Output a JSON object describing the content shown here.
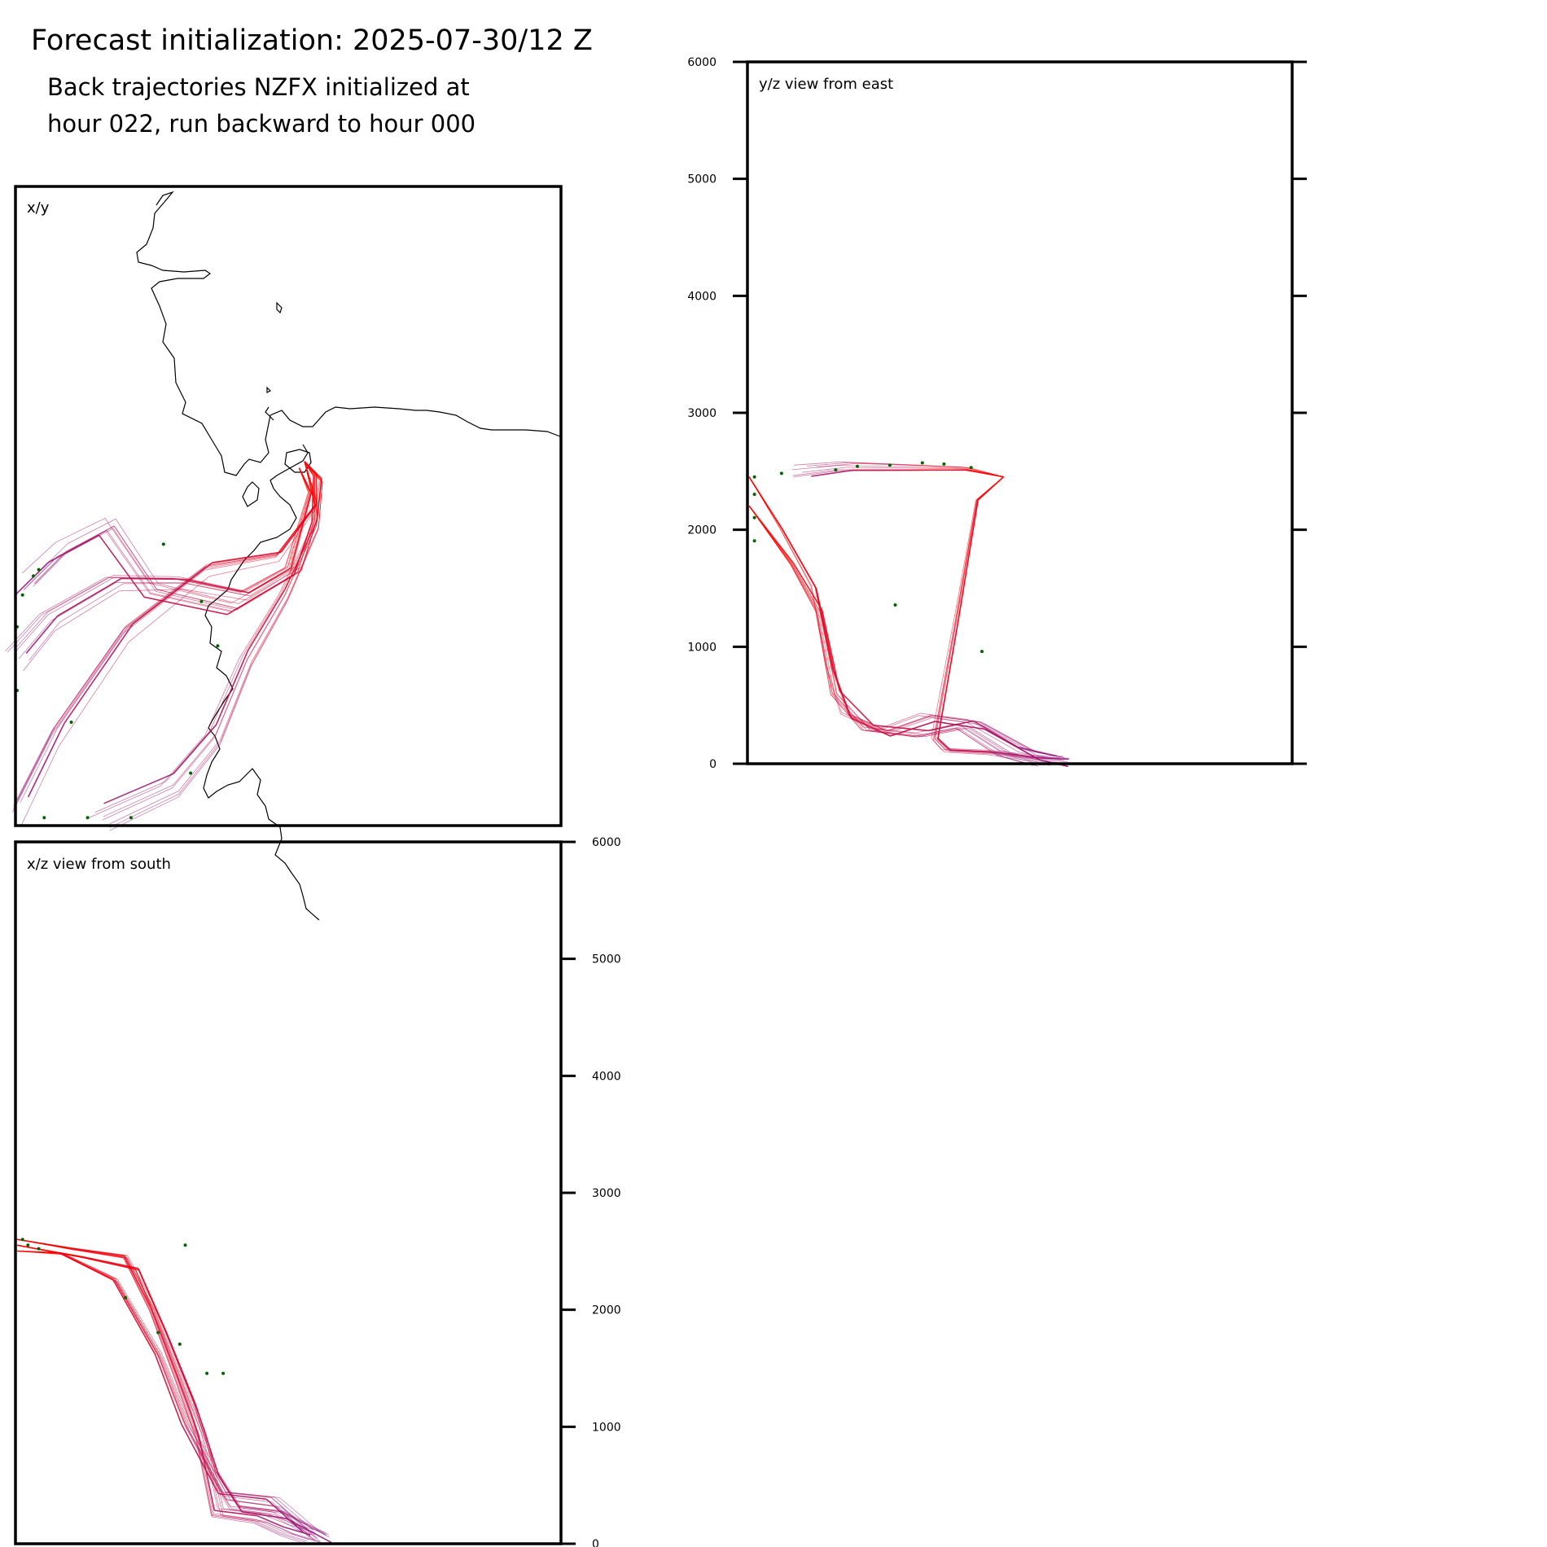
{
  "title": "Forecast initialization: 2025-07-30/12 Z",
  "subtitle_lines": [
    "Back trajectories NZFX initialized at",
    "hour 022, run backward to hour 000"
  ],
  "colors": {
    "trajectory_new": "#ff0000",
    "trajectory_old": "#8b1a8b",
    "endpoint": "#006400",
    "coastline": "#000000"
  },
  "chart_data": [
    {
      "type": "line",
      "panel": "x/y",
      "label": "x/y",
      "description_series": [
        {
          "name": "",
          "points": [
            [
              0.53,
              0.43
            ],
            [
              0.55,
              0.45
            ],
            [
              0.55,
              0.52
            ],
            [
              0.52,
              0.6
            ],
            [
              0.4,
              0.66
            ],
            [
              0.25,
              0.63
            ],
            [
              0.17,
              0.53
            ],
            [
              0.08,
              0.57
            ],
            [
              0.02,
              0.62
            ]
          ]
        },
        {
          "name": "",
          "points": [
            [
              0.53,
              0.43
            ],
            [
              0.56,
              0.46
            ],
            [
              0.55,
              0.53
            ],
            [
              0.49,
              0.64
            ],
            [
              0.42,
              0.74
            ],
            [
              0.36,
              0.86
            ],
            [
              0.28,
              0.94
            ],
            [
              0.15,
              0.99
            ]
          ]
        },
        {
          "name": "",
          "points": [
            [
              0.52,
              0.44
            ],
            [
              0.54,
              0.48
            ],
            [
              0.5,
              0.6
            ],
            [
              0.42,
              0.64
            ],
            [
              0.3,
              0.62
            ],
            [
              0.18,
              0.62
            ],
            [
              0.06,
              0.68
            ],
            [
              0.0,
              0.74
            ]
          ]
        },
        {
          "name": "",
          "points": [
            [
              0.53,
              0.43
            ],
            [
              0.55,
              0.5
            ],
            [
              0.48,
              0.58
            ],
            [
              0.35,
              0.6
            ],
            [
              0.2,
              0.7
            ],
            [
              0.07,
              0.86
            ],
            [
              0.0,
              0.98
            ]
          ]
        }
      ],
      "endpoints": [
        [
          0.04,
          0.6
        ],
        [
          0.03,
          0.61
        ],
        [
          0.01,
          0.64
        ],
        [
          0.0,
          0.69
        ],
        [
          0.0,
          0.79
        ],
        [
          0.05,
          0.99
        ],
        [
          0.13,
          0.99
        ],
        [
          0.21,
          0.99
        ],
        [
          0.27,
          0.56
        ],
        [
          0.34,
          0.65
        ],
        [
          0.37,
          0.72
        ],
        [
          0.1,
          0.84
        ],
        [
          0.32,
          0.92
        ]
      ]
    },
    {
      "type": "line",
      "panel": "y/z view from east",
      "label": "y/z view from east",
      "ylim": [
        0,
        6000
      ],
      "yticks": [
        0,
        1000,
        2000,
        3000,
        4000,
        5000,
        6000
      ],
      "series": [
        {
          "name": "",
          "points": [
            [
              0.47,
              2450
            ],
            [
              0.42,
              2250
            ],
            [
              0.38,
              1200
            ],
            [
              0.34,
              200
            ],
            [
              0.36,
              100
            ],
            [
              0.44,
              80
            ],
            [
              0.52,
              30
            ],
            [
              0.57,
              20
            ]
          ]
        },
        {
          "name": "",
          "points": [
            [
              0.47,
              2450
            ],
            [
              0.4,
              2520
            ],
            [
              0.3,
              2530
            ],
            [
              0.18,
              2540
            ],
            [
              0.1,
              2500
            ]
          ]
        },
        {
          "name": "",
          "points": [
            [
              0.0,
              2450
            ],
            [
              0.06,
              2000
            ],
            [
              0.12,
              1500
            ],
            [
              0.15,
              800
            ],
            [
              0.18,
              400
            ],
            [
              0.25,
              250
            ],
            [
              0.33,
              380
            ],
            [
              0.42,
              320
            ],
            [
              0.52,
              60
            ],
            [
              0.57,
              10
            ]
          ]
        },
        {
          "name": "",
          "points": [
            [
              0.0,
              2200
            ],
            [
              0.08,
              1700
            ],
            [
              0.13,
              1300
            ],
            [
              0.16,
              600
            ],
            [
              0.22,
              300
            ],
            [
              0.32,
              250
            ],
            [
              0.4,
              330
            ],
            [
              0.48,
              100
            ],
            [
              0.55,
              20
            ]
          ]
        }
      ],
      "endpoints": [
        [
          0.01,
          2450
        ],
        [
          0.01,
          2300
        ],
        [
          0.01,
          2100
        ],
        [
          0.01,
          1900
        ],
        [
          0.06,
          2480
        ],
        [
          0.16,
          2510
        ],
        [
          0.2,
          2540
        ],
        [
          0.26,
          2550
        ],
        [
          0.32,
          2570
        ],
        [
          0.36,
          2560
        ],
        [
          0.41,
          2530
        ],
        [
          0.27,
          1350
        ],
        [
          0.43,
          950
        ]
      ]
    },
    {
      "type": "line",
      "panel": "x/z view from south",
      "label": "x/z view from south",
      "ylim": [
        0,
        6000
      ],
      "yticks": [
        0,
        1000,
        2000,
        3000,
        4000,
        5000,
        6000
      ],
      "series": [
        {
          "name": "",
          "points": [
            [
              0.0,
              2600
            ],
            [
              0.1,
              2520
            ],
            [
              0.2,
              2450
            ],
            [
              0.25,
              2000
            ],
            [
              0.3,
              1400
            ],
            [
              0.34,
              900
            ],
            [
              0.37,
              250
            ],
            [
              0.45,
              200
            ],
            [
              0.5,
              100
            ],
            [
              0.55,
              30
            ]
          ]
        },
        {
          "name": "",
          "points": [
            [
              0.0,
              2550
            ],
            [
              0.12,
              2450
            ],
            [
              0.22,
              2350
            ],
            [
              0.27,
              1800
            ],
            [
              0.32,
              1200
            ],
            [
              0.36,
              600
            ],
            [
              0.4,
              300
            ],
            [
              0.48,
              250
            ],
            [
              0.56,
              50
            ]
          ]
        },
        {
          "name": "",
          "points": [
            [
              0.0,
              2500
            ],
            [
              0.08,
              2480
            ],
            [
              0.18,
              2250
            ],
            [
              0.26,
              1600
            ],
            [
              0.31,
              1000
            ],
            [
              0.38,
              400
            ],
            [
              0.47,
              350
            ],
            [
              0.54,
              60
            ]
          ]
        }
      ],
      "endpoints": [
        [
          0.01,
          2600
        ],
        [
          0.02,
          2550
        ],
        [
          0.04,
          2520
        ],
        [
          0.2,
          2100
        ],
        [
          0.26,
          1800
        ],
        [
          0.3,
          1700
        ],
        [
          0.35,
          1450
        ],
        [
          0.38,
          1450
        ],
        [
          0.31,
          2550
        ]
      ]
    }
  ]
}
